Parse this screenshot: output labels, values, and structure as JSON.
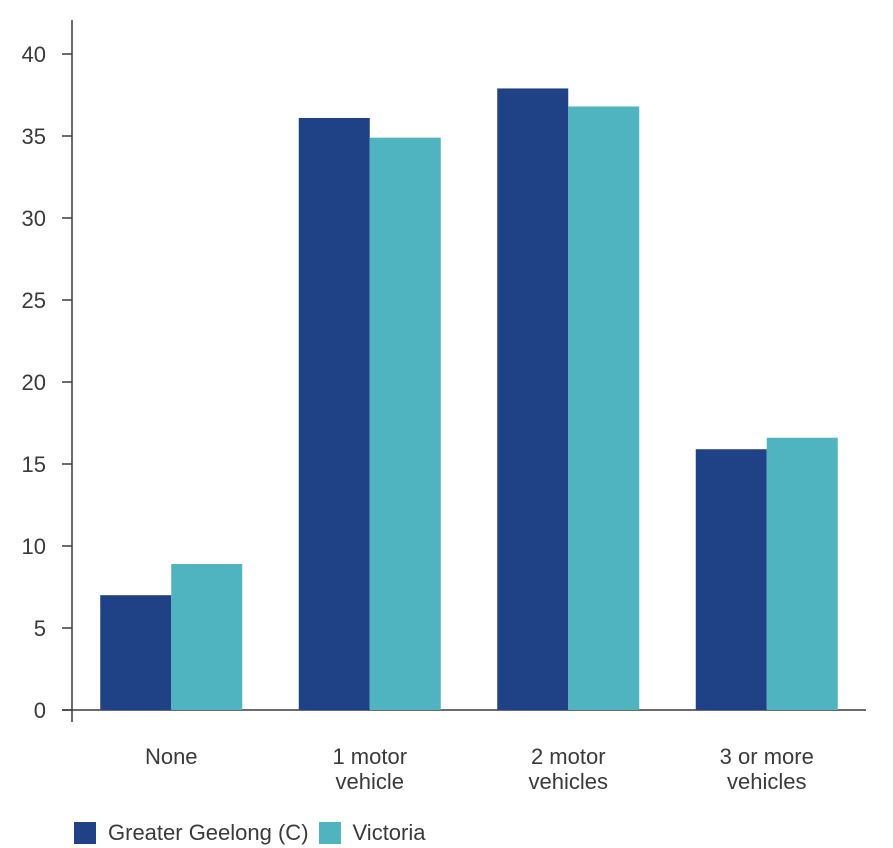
{
  "chart_data": {
    "type": "bar",
    "categories": [
      [
        "None"
      ],
      [
        "1 motor",
        "vehicle"
      ],
      [
        "2 motor",
        "vehicles"
      ],
      [
        "3 or more",
        "vehicles"
      ]
    ],
    "series": [
      {
        "name": "Greater Geelong (C)",
        "color": "#1f4287",
        "values": [
          7.0,
          36.1,
          37.9,
          15.9
        ]
      },
      {
        "name": "Victoria",
        "color": "#4fb3c0",
        "values": [
          8.9,
          34.9,
          36.8,
          16.6
        ]
      }
    ],
    "yticks": [
      "0",
      "5",
      "10",
      "15",
      "20",
      "25",
      "30",
      "35",
      "40"
    ],
    "ylim": [
      0,
      40
    ],
    "grid": false,
    "legend_position": "bottom-left",
    "title": "",
    "xlabel": "",
    "ylabel": ""
  },
  "legend": {
    "items": [
      {
        "label": "Greater Geelong (C)",
        "color": "#1f4287"
      },
      {
        "label": "Victoria",
        "color": "#4fb3c0"
      }
    ]
  }
}
